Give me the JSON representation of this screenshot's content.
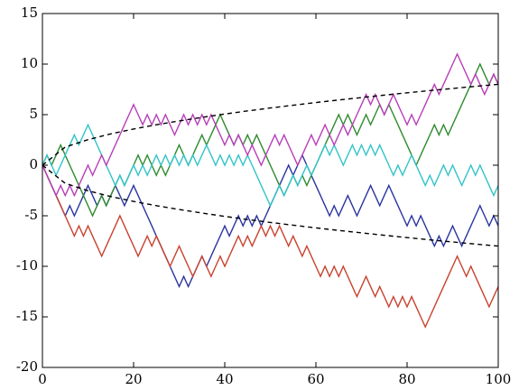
{
  "chart_data": {
    "type": "line",
    "x": [
      0,
      1,
      2,
      3,
      4,
      5,
      6,
      7,
      8,
      9,
      10,
      11,
      12,
      13,
      14,
      15,
      16,
      17,
      18,
      19,
      20,
      21,
      22,
      23,
      24,
      25,
      26,
      27,
      28,
      29,
      30,
      31,
      32,
      33,
      34,
      35,
      36,
      37,
      38,
      39,
      40,
      41,
      42,
      43,
      44,
      45,
      46,
      47,
      48,
      49,
      50,
      51,
      52,
      53,
      54,
      55,
      56,
      57,
      58,
      59,
      60,
      61,
      62,
      63,
      64,
      65,
      66,
      67,
      68,
      69,
      70,
      71,
      72,
      73,
      74,
      75,
      76,
      77,
      78,
      79,
      80,
      81,
      82,
      83,
      84,
      85,
      86,
      87,
      88,
      89,
      90,
      91,
      92,
      93,
      94,
      95,
      96,
      97,
      98,
      99,
      100
    ],
    "series": [
      {
        "color": "#2b35a0",
        "values": [
          0,
          -1,
          -2,
          -3,
          -4,
          -5,
          -4,
          -5,
          -4,
          -3,
          -2,
          -3,
          -4,
          -3,
          -4,
          -3,
          -2,
          -3,
          -4,
          -3,
          -2,
          -3,
          -4,
          -5,
          -6,
          -7,
          -8,
          -9,
          -10,
          -11,
          -12,
          -11,
          -12,
          -11,
          -10,
          -9,
          -10,
          -9,
          -8,
          -7,
          -6,
          -7,
          -6,
          -5,
          -6,
          -5,
          -6,
          -5,
          -6,
          -5,
          -4,
          -3,
          -2,
          -1,
          0,
          -1,
          0,
          1,
          0,
          -1,
          -2,
          -3,
          -4,
          -5,
          -4,
          -5,
          -4,
          -3,
          -4,
          -5,
          -4,
          -3,
          -2,
          -3,
          -4,
          -3,
          -2,
          -3,
          -4,
          -5,
          -6,
          -5,
          -6,
          -5,
          -6,
          -7,
          -8,
          -7,
          -8,
          -7,
          -6,
          -7,
          -8,
          -7,
          -6,
          -5,
          -4,
          -5,
          -6,
          -5,
          -6
        ]
      },
      {
        "color": "#2e8b2e",
        "values": [
          0,
          1,
          0,
          1,
          2,
          1,
          0,
          -1,
          -2,
          -3,
          -4,
          -5,
          -4,
          -3,
          -4,
          -3,
          -2,
          -1,
          -2,
          -1,
          0,
          1,
          0,
          1,
          0,
          -1,
          0,
          -1,
          0,
          1,
          2,
          1,
          0,
          1,
          2,
          3,
          2,
          3,
          4,
          5,
          4,
          3,
          2,
          3,
          2,
          3,
          2,
          3,
          2,
          1,
          0,
          -1,
          -2,
          -3,
          -2,
          -1,
          -2,
          -1,
          -2,
          -1,
          0,
          1,
          2,
          3,
          4,
          5,
          4,
          5,
          4,
          3,
          4,
          5,
          4,
          5,
          6,
          5,
          6,
          5,
          4,
          3,
          2,
          1,
          0,
          1,
          2,
          3,
          4,
          3,
          4,
          3,
          4,
          5,
          6,
          7,
          8,
          9,
          10,
          9,
          8,
          9,
          8
        ]
      },
      {
        "color": "#c8432f",
        "values": [
          0,
          -1,
          -2,
          -3,
          -4,
          -5,
          -6,
          -7,
          -6,
          -7,
          -6,
          -7,
          -8,
          -9,
          -8,
          -7,
          -6,
          -5,
          -6,
          -7,
          -8,
          -9,
          -8,
          -7,
          -8,
          -7,
          -8,
          -9,
          -10,
          -9,
          -8,
          -9,
          -10,
          -11,
          -10,
          -9,
          -10,
          -11,
          -10,
          -9,
          -10,
          -9,
          -8,
          -7,
          -8,
          -7,
          -8,
          -7,
          -6,
          -7,
          -6,
          -7,
          -6,
          -7,
          -8,
          -7,
          -8,
          -9,
          -8,
          -9,
          -10,
          -11,
          -10,
          -11,
          -10,
          -11,
          -10,
          -11,
          -12,
          -13,
          -12,
          -11,
          -12,
          -13,
          -12,
          -13,
          -14,
          -13,
          -14,
          -13,
          -14,
          -13,
          -14,
          -15,
          -16,
          -15,
          -14,
          -13,
          -12,
          -11,
          -10,
          -9,
          -10,
          -11,
          -10,
          -11,
          -12,
          -13,
          -14,
          -13,
          -12
        ]
      },
      {
        "color": "#33c4c8",
        "values": [
          0,
          1,
          0,
          -1,
          0,
          1,
          2,
          3,
          2,
          3,
          4,
          3,
          2,
          1,
          0,
          -1,
          -2,
          -1,
          -2,
          -1,
          0,
          -1,
          0,
          -1,
          0,
          1,
          0,
          1,
          0,
          1,
          0,
          1,
          0,
          1,
          0,
          1,
          2,
          1,
          0,
          1,
          0,
          1,
          0,
          1,
          0,
          1,
          0,
          -1,
          -2,
          -3,
          -4,
          -3,
          -2,
          -3,
          -2,
          -1,
          -2,
          -1,
          0,
          -1,
          0,
          1,
          2,
          1,
          2,
          1,
          0,
          1,
          2,
          1,
          2,
          1,
          2,
          1,
          2,
          1,
          0,
          -1,
          0,
          -1,
          0,
          1,
          0,
          -1,
          -2,
          -1,
          -2,
          -1,
          0,
          -1,
          0,
          -1,
          -2,
          -1,
          0,
          -1,
          0,
          -1,
          -2,
          -3,
          -2
        ]
      },
      {
        "color": "#b83fb8",
        "values": [
          0,
          -1,
          -2,
          -3,
          -2,
          -3,
          -2,
          -3,
          -2,
          -1,
          0,
          -1,
          0,
          1,
          0,
          1,
          2,
          3,
          4,
          5,
          6,
          5,
          4,
          5,
          4,
          5,
          4,
          5,
          4,
          3,
          4,
          5,
          4,
          5,
          4,
          5,
          4,
          5,
          4,
          3,
          2,
          3,
          2,
          3,
          2,
          1,
          2,
          1,
          0,
          1,
          2,
          3,
          2,
          3,
          2,
          1,
          0,
          1,
          2,
          3,
          2,
          3,
          4,
          3,
          2,
          3,
          4,
          3,
          4,
          5,
          6,
          7,
          6,
          7,
          6,
          5,
          6,
          7,
          6,
          5,
          4,
          5,
          4,
          5,
          6,
          7,
          8,
          7,
          8,
          9,
          10,
          11,
          10,
          9,
          8,
          9,
          8,
          7,
          8,
          9,
          8
        ]
      },
      {
        "color": "#000000",
        "dashed": true,
        "x": [
          0,
          5,
          10,
          15,
          20,
          25,
          30,
          35,
          40,
          45,
          50,
          55,
          60,
          65,
          70,
          75,
          80,
          85,
          90,
          95,
          100
        ],
        "values": [
          0,
          1.79,
          2.53,
          3.1,
          3.58,
          4,
          4.38,
          4.73,
          5.06,
          5.37,
          5.66,
          5.93,
          6.2,
          6.45,
          6.69,
          6.93,
          7.16,
          7.38,
          7.59,
          7.8,
          8
        ]
      },
      {
        "color": "#000000",
        "dashed": true,
        "x": [
          0,
          5,
          10,
          15,
          20,
          25,
          30,
          35,
          40,
          45,
          50,
          55,
          60,
          65,
          70,
          75,
          80,
          85,
          90,
          95,
          100
        ],
        "values": [
          0,
          -1.79,
          -2.53,
          -3.1,
          -3.58,
          -4,
          -4.38,
          -4.73,
          -5.06,
          -5.37,
          -5.66,
          -5.93,
          -6.2,
          -6.45,
          -6.69,
          -6.93,
          -7.16,
          -7.38,
          -7.59,
          -7.8,
          -8
        ]
      }
    ],
    "xlim": [
      0,
      100
    ],
    "xticks": [
      0,
      20,
      40,
      60,
      80,
      100
    ],
    "ylim": [
      -20,
      15
    ],
    "yticks": [
      -20,
      -15,
      -10,
      -5,
      0,
      5,
      10,
      15
    ],
    "grid": false
  }
}
